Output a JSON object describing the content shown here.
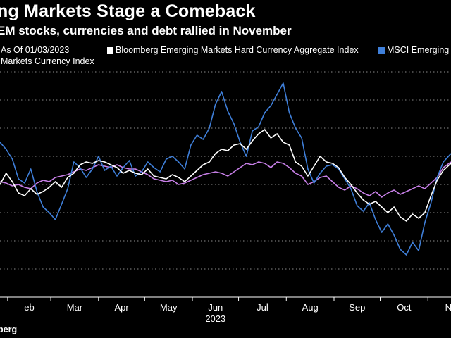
{
  "header": {
    "title": "ng Markets Stage a Comeback",
    "subtitle": "EM stocks, currencies and debt rallied in November"
  },
  "legend": {
    "prefix": "As Of 01/03/2023",
    "items": [
      {
        "label": "Bloomberg Emerging Markets Hard Currency Aggregate Index",
        "color": "#ffffff"
      },
      {
        "label": "MSCI Emerging M",
        "color": "#3f7fd9"
      },
      {
        "label": "Markets Currency Index",
        "color": "#c880e8"
      }
    ]
  },
  "source": "berg",
  "chart_data": {
    "type": "line",
    "title": "ng Markets Stage a Comeback",
    "subtitle": "EM stocks, currencies and debt rallied in November",
    "xlabel": "2023",
    "ylabel": "",
    "x_ticks": [
      "eb",
      "Mar",
      "Apr",
      "May",
      "Jun",
      "Jul",
      "Aug",
      "Sep",
      "Oct",
      "Nov"
    ],
    "x_tick_dates": [
      "2023-02-01",
      "2023-03-01",
      "2023-04-01",
      "2023-05-01",
      "2023-06-01",
      "2023-07-01",
      "2023-08-01",
      "2023-09-01",
      "2023-10-01",
      "2023-11-01"
    ],
    "x_range": [
      "2023-01-27",
      "2023-11-16"
    ],
    "ylim": [
      -8,
      8
    ],
    "grid": true,
    "y_ticks_labeled": false,
    "legend_position": "top",
    "series": [
      {
        "name": "Bloomberg Emerging Markets Hard Currency Aggregate Index",
        "color": "#ffffff",
        "points": [
          [
            "2023-01-27",
            0.0
          ],
          [
            "2023-01-31",
            0.8
          ],
          [
            "2023-02-04",
            0.2
          ],
          [
            "2023-02-08",
            -0.6
          ],
          [
            "2023-02-12",
            -0.8
          ],
          [
            "2023-02-16",
            -0.3
          ],
          [
            "2023-02-20",
            -0.7
          ],
          [
            "2023-02-24",
            -0.5
          ],
          [
            "2023-02-28",
            -0.2
          ],
          [
            "2023-03-04",
            0.2
          ],
          [
            "2023-03-08",
            -0.2
          ],
          [
            "2023-03-12",
            0.5
          ],
          [
            "2023-03-16",
            0.8
          ],
          [
            "2023-03-20",
            1.4
          ],
          [
            "2023-03-24",
            1.6
          ],
          [
            "2023-03-28",
            1.5
          ],
          [
            "2023-04-01",
            1.7
          ],
          [
            "2023-04-05",
            1.6
          ],
          [
            "2023-04-09",
            1.4
          ],
          [
            "2023-04-13",
            1.2
          ],
          [
            "2023-04-17",
            0.8
          ],
          [
            "2023-04-21",
            1.0
          ],
          [
            "2023-04-25",
            0.8
          ],
          [
            "2023-04-29",
            0.7
          ],
          [
            "2023-05-03",
            1.1
          ],
          [
            "2023-05-07",
            0.6
          ],
          [
            "2023-05-11",
            0.5
          ],
          [
            "2023-05-15",
            0.4
          ],
          [
            "2023-05-19",
            0.7
          ],
          [
            "2023-05-23",
            0.5
          ],
          [
            "2023-05-27",
            0.2
          ],
          [
            "2023-05-31",
            0.6
          ],
          [
            "2023-06-04",
            1.0
          ],
          [
            "2023-06-08",
            1.4
          ],
          [
            "2023-06-12",
            1.6
          ],
          [
            "2023-06-16",
            2.2
          ],
          [
            "2023-06-20",
            2.5
          ],
          [
            "2023-06-24",
            2.4
          ],
          [
            "2023-06-28",
            2.8
          ],
          [
            "2023-07-02",
            2.9
          ],
          [
            "2023-07-06",
            2.5
          ],
          [
            "2023-07-10",
            3.1
          ],
          [
            "2023-07-14",
            3.6
          ],
          [
            "2023-07-18",
            3.9
          ],
          [
            "2023-07-22",
            3.3
          ],
          [
            "2023-07-26",
            3.6
          ],
          [
            "2023-07-30",
            3.0
          ],
          [
            "2023-08-03",
            2.8
          ],
          [
            "2023-08-07",
            1.6
          ],
          [
            "2023-08-11",
            1.3
          ],
          [
            "2023-08-15",
            0.6
          ],
          [
            "2023-08-19",
            1.3
          ],
          [
            "2023-08-23",
            2.0
          ],
          [
            "2023-08-27",
            1.6
          ],
          [
            "2023-08-31",
            1.5
          ],
          [
            "2023-09-04",
            1.2
          ],
          [
            "2023-09-08",
            0.5
          ],
          [
            "2023-09-12",
            0.0
          ],
          [
            "2023-09-16",
            -0.6
          ],
          [
            "2023-09-20",
            -1.1
          ],
          [
            "2023-09-24",
            -1.4
          ],
          [
            "2023-09-28",
            -1.2
          ],
          [
            "2023-10-02",
            -1.6
          ],
          [
            "2023-10-06",
            -2.0
          ],
          [
            "2023-10-10",
            -1.6
          ],
          [
            "2023-10-14",
            -2.3
          ],
          [
            "2023-10-18",
            -2.6
          ],
          [
            "2023-10-22",
            -2.1
          ],
          [
            "2023-10-26",
            -2.4
          ],
          [
            "2023-10-30",
            -2.0
          ],
          [
            "2023-11-03",
            -0.8
          ],
          [
            "2023-11-07",
            0.3
          ],
          [
            "2023-11-11",
            1.0
          ],
          [
            "2023-11-16",
            1.5
          ]
        ]
      },
      {
        "name": "MSCI Emerging M",
        "color": "#3f7fd9",
        "points": [
          [
            "2023-01-27",
            3.0
          ],
          [
            "2023-01-31",
            2.5
          ],
          [
            "2023-02-04",
            1.8
          ],
          [
            "2023-02-08",
            0.4
          ],
          [
            "2023-02-12",
            0.1
          ],
          [
            "2023-02-16",
            1.1
          ],
          [
            "2023-02-20",
            -0.5
          ],
          [
            "2023-02-24",
            -1.6
          ],
          [
            "2023-02-28",
            -2.0
          ],
          [
            "2023-03-04",
            -2.5
          ],
          [
            "2023-03-08",
            -1.4
          ],
          [
            "2023-03-12",
            -0.3
          ],
          [
            "2023-03-16",
            1.6
          ],
          [
            "2023-03-20",
            1.2
          ],
          [
            "2023-03-24",
            0.5
          ],
          [
            "2023-03-28",
            1.1
          ],
          [
            "2023-04-01",
            2.0
          ],
          [
            "2023-04-05",
            1.0
          ],
          [
            "2023-04-09",
            1.3
          ],
          [
            "2023-04-13",
            0.6
          ],
          [
            "2023-04-17",
            1.2
          ],
          [
            "2023-04-21",
            1.7
          ],
          [
            "2023-04-25",
            0.6
          ],
          [
            "2023-04-29",
            0.9
          ],
          [
            "2023-05-03",
            1.6
          ],
          [
            "2023-05-07",
            1.2
          ],
          [
            "2023-05-11",
            0.9
          ],
          [
            "2023-05-15",
            1.8
          ],
          [
            "2023-05-19",
            2.0
          ],
          [
            "2023-05-23",
            1.6
          ],
          [
            "2023-05-27",
            1.1
          ],
          [
            "2023-05-31",
            2.8
          ],
          [
            "2023-06-04",
            3.5
          ],
          [
            "2023-06-08",
            3.2
          ],
          [
            "2023-06-12",
            4.0
          ],
          [
            "2023-06-16",
            5.7
          ],
          [
            "2023-06-20",
            6.6
          ],
          [
            "2023-06-24",
            5.2
          ],
          [
            "2023-06-28",
            4.3
          ],
          [
            "2023-07-02",
            3.0
          ],
          [
            "2023-07-06",
            2.0
          ],
          [
            "2023-07-10",
            3.8
          ],
          [
            "2023-07-14",
            4.1
          ],
          [
            "2023-07-18",
            5.1
          ],
          [
            "2023-07-22",
            5.6
          ],
          [
            "2023-07-26",
            6.4
          ],
          [
            "2023-07-30",
            7.2
          ],
          [
            "2023-08-03",
            5.1
          ],
          [
            "2023-08-07",
            4.0
          ],
          [
            "2023-08-11",
            3.3
          ],
          [
            "2023-08-15",
            1.1
          ],
          [
            "2023-08-19",
            0.1
          ],
          [
            "2023-08-23",
            0.8
          ],
          [
            "2023-08-27",
            1.3
          ],
          [
            "2023-08-31",
            1.4
          ],
          [
            "2023-09-04",
            1.1
          ],
          [
            "2023-09-08",
            0.4
          ],
          [
            "2023-09-12",
            -0.3
          ],
          [
            "2023-09-16",
            -1.5
          ],
          [
            "2023-09-20",
            -1.9
          ],
          [
            "2023-09-24",
            -1.3
          ],
          [
            "2023-09-28",
            -2.5
          ],
          [
            "2023-10-02",
            -3.4
          ],
          [
            "2023-10-06",
            -2.8
          ],
          [
            "2023-10-10",
            -3.6
          ],
          [
            "2023-10-14",
            -4.6
          ],
          [
            "2023-10-18",
            -5.0
          ],
          [
            "2023-10-22",
            -4.1
          ],
          [
            "2023-10-26",
            -4.7
          ],
          [
            "2023-10-30",
            -2.7
          ],
          [
            "2023-11-03",
            -1.3
          ],
          [
            "2023-11-07",
            0.5
          ],
          [
            "2023-11-11",
            1.6
          ],
          [
            "2023-11-16",
            2.2
          ]
        ]
      },
      {
        "name": "Markets Currency Index",
        "color": "#c880e8",
        "points": [
          [
            "2023-01-27",
            0.2
          ],
          [
            "2023-01-31",
            0.1
          ],
          [
            "2023-02-04",
            -0.1
          ],
          [
            "2023-02-08",
            0.0
          ],
          [
            "2023-02-12",
            -0.2
          ],
          [
            "2023-02-16",
            -0.3
          ],
          [
            "2023-02-20",
            0.1
          ],
          [
            "2023-02-24",
            0.3
          ],
          [
            "2023-02-28",
            0.2
          ],
          [
            "2023-03-04",
            0.5
          ],
          [
            "2023-03-08",
            0.6
          ],
          [
            "2023-03-12",
            0.7
          ],
          [
            "2023-03-16",
            0.9
          ],
          [
            "2023-03-20",
            1.1
          ],
          [
            "2023-03-24",
            1.0
          ],
          [
            "2023-03-28",
            1.2
          ],
          [
            "2023-04-01",
            1.4
          ],
          [
            "2023-04-05",
            1.3
          ],
          [
            "2023-04-09",
            1.2
          ],
          [
            "2023-04-13",
            1.4
          ],
          [
            "2023-04-17",
            1.2
          ],
          [
            "2023-04-21",
            1.1
          ],
          [
            "2023-04-25",
            1.1
          ],
          [
            "2023-04-29",
            0.9
          ],
          [
            "2023-05-03",
            0.7
          ],
          [
            "2023-05-07",
            0.4
          ],
          [
            "2023-05-11",
            0.3
          ],
          [
            "2023-05-15",
            0.2
          ],
          [
            "2023-05-19",
            0.3
          ],
          [
            "2023-05-23",
            0.0
          ],
          [
            "2023-05-27",
            0.1
          ],
          [
            "2023-05-31",
            0.3
          ],
          [
            "2023-06-04",
            0.5
          ],
          [
            "2023-06-08",
            0.7
          ],
          [
            "2023-06-12",
            0.8
          ],
          [
            "2023-06-16",
            0.9
          ],
          [
            "2023-06-20",
            0.8
          ],
          [
            "2023-06-24",
            0.6
          ],
          [
            "2023-06-28",
            0.9
          ],
          [
            "2023-07-02",
            1.2
          ],
          [
            "2023-07-06",
            1.5
          ],
          [
            "2023-07-10",
            1.4
          ],
          [
            "2023-07-14",
            1.6
          ],
          [
            "2023-07-18",
            1.5
          ],
          [
            "2023-07-22",
            1.2
          ],
          [
            "2023-07-26",
            1.6
          ],
          [
            "2023-07-30",
            1.5
          ],
          [
            "2023-08-03",
            1.2
          ],
          [
            "2023-08-07",
            0.8
          ],
          [
            "2023-08-11",
            0.6
          ],
          [
            "2023-08-15",
            0.0
          ],
          [
            "2023-08-19",
            0.2
          ],
          [
            "2023-08-23",
            0.5
          ],
          [
            "2023-08-27",
            0.6
          ],
          [
            "2023-08-31",
            0.2
          ],
          [
            "2023-09-04",
            -0.2
          ],
          [
            "2023-09-08",
            -0.4
          ],
          [
            "2023-09-12",
            -0.1
          ],
          [
            "2023-09-16",
            -0.3
          ],
          [
            "2023-09-20",
            -0.6
          ],
          [
            "2023-09-24",
            -0.8
          ],
          [
            "2023-09-28",
            -0.5
          ],
          [
            "2023-10-02",
            -0.9
          ],
          [
            "2023-10-06",
            -0.6
          ],
          [
            "2023-10-10",
            -0.4
          ],
          [
            "2023-10-14",
            -0.7
          ],
          [
            "2023-10-18",
            -0.5
          ],
          [
            "2023-10-22",
            -0.3
          ],
          [
            "2023-10-26",
            -0.1
          ],
          [
            "2023-10-30",
            -0.3
          ],
          [
            "2023-11-03",
            0.1
          ],
          [
            "2023-11-07",
            0.5
          ],
          [
            "2023-11-11",
            1.2
          ],
          [
            "2023-11-16",
            1.6
          ]
        ]
      }
    ]
  }
}
